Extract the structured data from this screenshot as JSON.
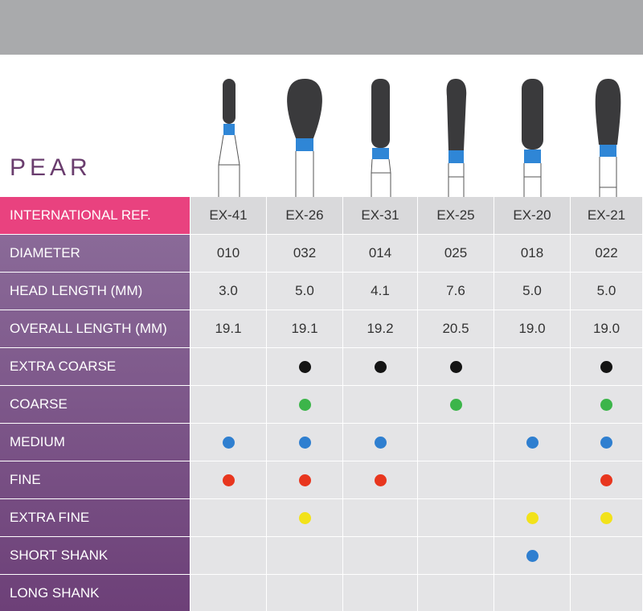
{
  "title": "PEAR",
  "table": {
    "header": [
      "INTERNATIONAL REF.",
      "EX-41",
      "EX-26",
      "EX-31",
      "EX-25",
      "EX-20",
      "EX-21"
    ],
    "rows": [
      {
        "label": "DIAMETER",
        "cells": [
          "010",
          "032",
          "014",
          "025",
          "018",
          "022"
        ]
      },
      {
        "label": "HEAD LENGTH (MM)",
        "cells": [
          "3.0",
          "5.0",
          "4.1",
          "7.6",
          "5.0",
          "5.0"
        ]
      },
      {
        "label": "OVERALL LENGTH (MM)",
        "cells": [
          "19.1",
          "19.1",
          "19.2",
          "20.5",
          "19.0",
          "19.0"
        ]
      }
    ],
    "dot_rows": [
      {
        "label": "EXTRA COARSE",
        "color": "#141414",
        "cells": [
          false,
          true,
          true,
          true,
          false,
          true
        ]
      },
      {
        "label": "COARSE",
        "color": "#3cb54a",
        "cells": [
          false,
          true,
          false,
          true,
          false,
          true
        ]
      },
      {
        "label": "MEDIUM",
        "color": "#2f7fd0",
        "cells": [
          true,
          true,
          true,
          false,
          true,
          true
        ]
      },
      {
        "label": "FINE",
        "color": "#e8361e",
        "cells": [
          true,
          true,
          true,
          false,
          false,
          true
        ]
      },
      {
        "label": "EXTRA FINE",
        "color": "#f2e21a",
        "cells": [
          false,
          true,
          false,
          false,
          true,
          true
        ]
      },
      {
        "label": "SHORT SHANK",
        "color": "#2f7fd0",
        "cells": [
          false,
          false,
          false,
          false,
          true,
          false
        ]
      },
      {
        "label": "LONG SHANK",
        "color": "#2f7fd0",
        "cells": [
          false,
          false,
          false,
          false,
          false,
          false
        ]
      }
    ]
  }
}
